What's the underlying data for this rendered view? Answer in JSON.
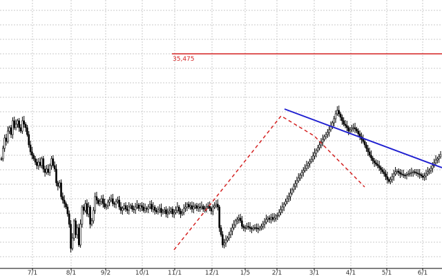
{
  "chart_data": {
    "type": "candlestick",
    "title": "",
    "xlabel": "",
    "ylabel": "",
    "x_ticks": [
      "7/1",
      "8/1",
      "9/2",
      "10/1",
      "11/1",
      "12/1",
      "1/5",
      "2/1",
      "3/1",
      "4/1",
      "5/1",
      "6/1"
    ],
    "grid": true,
    "resistance_level": {
      "label": "35,475",
      "color": "#d42020"
    },
    "trendline_color": "#2020d0",
    "pattern_color": "#d42020",
    "series": [
      {
        "points": [
          [
            0,
            230
          ],
          [
            1,
            215
          ],
          [
            2,
            200
          ],
          [
            3,
            205
          ],
          [
            4,
            190
          ],
          [
            5,
            185
          ],
          [
            6,
            195
          ],
          [
            7,
            175
          ],
          [
            8,
            185
          ],
          [
            9,
            180
          ],
          [
            10,
            175
          ],
          [
            11,
            185
          ],
          [
            12,
            190
          ],
          [
            13,
            175
          ],
          [
            14,
            180
          ],
          [
            15,
            185
          ],
          [
            16,
            195
          ],
          [
            17,
            210
          ],
          [
            18,
            220
          ],
          [
            19,
            225
          ],
          [
            20,
            230
          ],
          [
            21,
            235
          ],
          [
            22,
            240
          ],
          [
            23,
            235
          ],
          [
            24,
            240
          ],
          [
            25,
            230
          ],
          [
            26,
            245
          ],
          [
            27,
            250
          ],
          [
            28,
            245
          ],
          [
            29,
            250
          ],
          [
            30,
            240
          ],
          [
            31,
            230
          ],
          [
            32,
            240
          ],
          [
            33,
            245
          ],
          [
            34,
            265
          ],
          [
            35,
            270
          ],
          [
            36,
            265
          ],
          [
            37,
            285
          ],
          [
            38,
            290
          ],
          [
            39,
            295
          ],
          [
            40,
            300
          ],
          [
            41,
            310
          ],
          [
            42,
            325
          ],
          [
            43,
            360
          ],
          [
            44,
            345
          ],
          [
            45,
            320
          ],
          [
            46,
            340
          ],
          [
            47,
            330
          ],
          [
            48,
            355
          ],
          [
            49,
            325
          ],
          [
            50,
            300
          ],
          [
            51,
            305
          ],
          [
            52,
            295
          ],
          [
            53,
            310
          ],
          [
            54,
            300
          ],
          [
            55,
            325
          ],
          [
            56,
            320
          ],
          [
            57,
            305
          ],
          [
            58,
            285
          ],
          [
            59,
            290
          ],
          [
            60,
            295
          ],
          [
            61,
            292
          ],
          [
            62,
            288
          ],
          [
            63,
            295
          ],
          [
            64,
            300
          ],
          [
            65,
            298
          ],
          [
            66,
            293
          ],
          [
            67,
            290
          ],
          [
            68,
            288
          ],
          [
            69,
            295
          ],
          [
            70,
            296
          ],
          [
            71,
            292
          ],
          [
            72,
            290
          ],
          [
            73,
            300
          ],
          [
            74,
            305
          ],
          [
            75,
            302
          ],
          [
            76,
            298
          ],
          [
            77,
            303
          ],
          [
            78,
            305
          ],
          [
            79,
            300
          ],
          [
            80,
            298
          ],
          [
            81,
            303
          ],
          [
            82,
            304
          ],
          [
            83,
            300
          ],
          [
            84,
            297
          ],
          [
            85,
            302
          ],
          [
            86,
            298
          ],
          [
            87,
            300
          ],
          [
            88,
            305
          ],
          [
            89,
            302
          ],
          [
            90,
            303
          ],
          [
            91,
            300
          ],
          [
            92,
            296
          ],
          [
            93,
            303
          ],
          [
            94,
            300
          ],
          [
            95,
            305
          ],
          [
            96,
            307
          ],
          [
            97,
            304
          ],
          [
            98,
            302
          ],
          [
            99,
            308
          ],
          [
            100,
            306
          ],
          [
            101,
            304
          ],
          [
            102,
            310
          ],
          [
            103,
            308
          ],
          [
            104,
            306
          ],
          [
            105,
            303
          ],
          [
            106,
            310
          ],
          [
            107,
            308
          ],
          [
            108,
            305
          ],
          [
            109,
            300
          ],
          [
            110,
            306
          ],
          [
            111,
            310
          ],
          [
            112,
            308
          ],
          [
            113,
            302
          ],
          [
            114,
            300
          ],
          [
            115,
            296
          ],
          [
            116,
            300
          ],
          [
            117,
            298
          ],
          [
            118,
            303
          ],
          [
            119,
            300
          ],
          [
            120,
            298
          ],
          [
            121,
            302
          ],
          [
            122,
            300
          ],
          [
            123,
            301
          ],
          [
            124,
            299
          ],
          [
            125,
            303
          ],
          [
            126,
            302
          ],
          [
            127,
            300
          ],
          [
            128,
            299
          ],
          [
            129,
            302
          ],
          [
            130,
            306
          ],
          [
            131,
            300
          ],
          [
            132,
            298
          ],
          [
            133,
            296
          ],
          [
            134,
            300
          ],
          [
            135,
            330
          ],
          [
            136,
            340
          ],
          [
            137,
            355
          ],
          [
            138,
            352
          ],
          [
            139,
            348
          ],
          [
            140,
            345
          ],
          [
            141,
            340
          ],
          [
            142,
            335
          ],
          [
            143,
            330
          ],
          [
            144,
            326
          ],
          [
            145,
            320
          ],
          [
            146,
            318
          ],
          [
            147,
            316
          ],
          [
            148,
            320
          ],
          [
            149,
            328
          ],
          [
            150,
            330
          ],
          [
            151,
            330
          ],
          [
            152,
            328
          ],
          [
            153,
            329
          ],
          [
            154,
            331
          ],
          [
            155,
            332
          ],
          [
            156,
            330
          ],
          [
            157,
            330
          ],
          [
            158,
            331
          ],
          [
            159,
            332
          ],
          [
            160,
            330
          ],
          [
            161,
            328
          ],
          [
            162,
            325
          ],
          [
            163,
            322
          ],
          [
            164,
            318
          ],
          [
            165,
            316
          ],
          [
            166,
            318
          ],
          [
            167,
            315
          ],
          [
            168,
            318
          ],
          [
            169,
            316
          ],
          [
            170,
            313
          ],
          [
            171,
            312
          ],
          [
            172,
            308
          ],
          [
            173,
            304
          ],
          [
            174,
            300
          ],
          [
            175,
            296
          ],
          [
            176,
            292
          ],
          [
            177,
            288
          ],
          [
            178,
            285
          ],
          [
            179,
            280
          ],
          [
            180,
            275
          ],
          [
            181,
            270
          ],
          [
            182,
            266
          ],
          [
            183,
            262
          ],
          [
            184,
            258
          ],
          [
            185,
            254
          ],
          [
            186,
            250
          ],
          [
            187,
            247
          ],
          [
            188,
            244
          ],
          [
            189,
            240
          ],
          [
            190,
            237
          ],
          [
            191,
            234
          ],
          [
            192,
            231
          ],
          [
            193,
            226
          ],
          [
            194,
            222
          ],
          [
            195,
            218
          ],
          [
            196,
            214
          ],
          [
            197,
            210
          ],
          [
            198,
            206
          ],
          [
            199,
            202
          ],
          [
            200,
            198
          ],
          [
            201,
            195
          ],
          [
            202,
            192
          ],
          [
            203,
            188
          ],
          [
            204,
            183
          ],
          [
            205,
            178
          ],
          [
            206,
            172
          ],
          [
            207,
            165
          ],
          [
            208,
            160
          ],
          [
            209,
            165
          ],
          [
            210,
            170
          ],
          [
            211,
            175
          ],
          [
            212,
            180
          ],
          [
            213,
            182
          ],
          [
            214,
            185
          ],
          [
            215,
            190
          ],
          [
            216,
            188
          ],
          [
            217,
            186
          ],
          [
            218,
            185
          ],
          [
            219,
            187
          ],
          [
            220,
            190
          ],
          [
            221,
            194
          ],
          [
            222,
            198
          ],
          [
            223,
            202
          ],
          [
            224,
            205
          ],
          [
            225,
            210
          ],
          [
            226,
            215
          ],
          [
            227,
            220
          ],
          [
            228,
            225
          ],
          [
            229,
            229
          ],
          [
            230,
            233
          ],
          [
            231,
            236
          ],
          [
            232,
            238
          ],
          [
            233,
            240
          ],
          [
            234,
            243
          ],
          [
            235,
            246
          ],
          [
            236,
            249
          ],
          [
            237,
            252
          ],
          [
            238,
            256
          ],
          [
            239,
            260
          ],
          [
            240,
            263
          ],
          [
            241,
            260
          ],
          [
            242,
            256
          ],
          [
            243,
            252
          ],
          [
            244,
            249
          ],
          [
            245,
            248
          ],
          [
            246,
            250
          ],
          [
            247,
            252
          ],
          [
            248,
            253
          ],
          [
            249,
            254
          ],
          [
            250,
            254
          ],
          [
            251,
            253
          ],
          [
            252,
            252
          ],
          [
            253,
            251
          ],
          [
            254,
            250
          ],
          [
            255,
            249
          ],
          [
            256,
            250
          ],
          [
            257,
            251
          ],
          [
            258,
            252
          ],
          [
            259,
            253
          ],
          [
            260,
            255
          ],
          [
            261,
            257
          ],
          [
            262,
            255
          ],
          [
            263,
            252
          ],
          [
            264,
            249
          ],
          [
            265,
            247
          ],
          [
            266,
            244
          ],
          [
            267,
            240
          ],
          [
            268,
            236
          ],
          [
            269,
            232
          ],
          [
            270,
            230
          ],
          [
            271,
            227
          ],
          [
            272,
            224
          ]
        ]
      }
    ]
  }
}
